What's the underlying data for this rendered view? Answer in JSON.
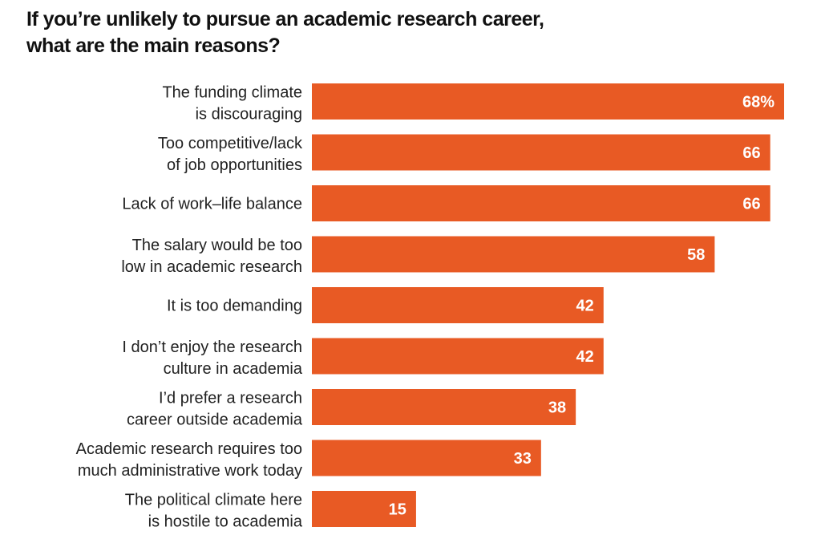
{
  "chart_data": {
    "type": "bar",
    "orientation": "horizontal",
    "title": "If you’re unlikely to pursue an academic research career, what are the main reasons?",
    "categories": [
      [
        "The funding climate",
        "is discouraging"
      ],
      [
        "Too competitive/lack",
        "of job opportunities"
      ],
      [
        "Lack of work–life balance"
      ],
      [
        "The salary would be too",
        "low in academic research"
      ],
      [
        "It is too demanding"
      ],
      [
        "I don’t enjoy the research",
        "culture in academia"
      ],
      [
        "I’d prefer a research",
        "career outside academia"
      ],
      [
        "Academic research requires too",
        "much administrative work today"
      ],
      [
        "The political climate here",
        "is hostile to academia"
      ]
    ],
    "values": [
      68,
      66,
      66,
      58,
      42,
      42,
      38,
      33,
      15
    ],
    "value_labels": [
      "68%",
      "66",
      "66",
      "58",
      "42",
      "42",
      "38",
      "33",
      "15"
    ],
    "unit": "%",
    "xlim": [
      0,
      68
    ],
    "grid": false,
    "colors": {
      "bar": "#E85A24",
      "label": "#222222",
      "value": "#FFFFFF"
    }
  }
}
